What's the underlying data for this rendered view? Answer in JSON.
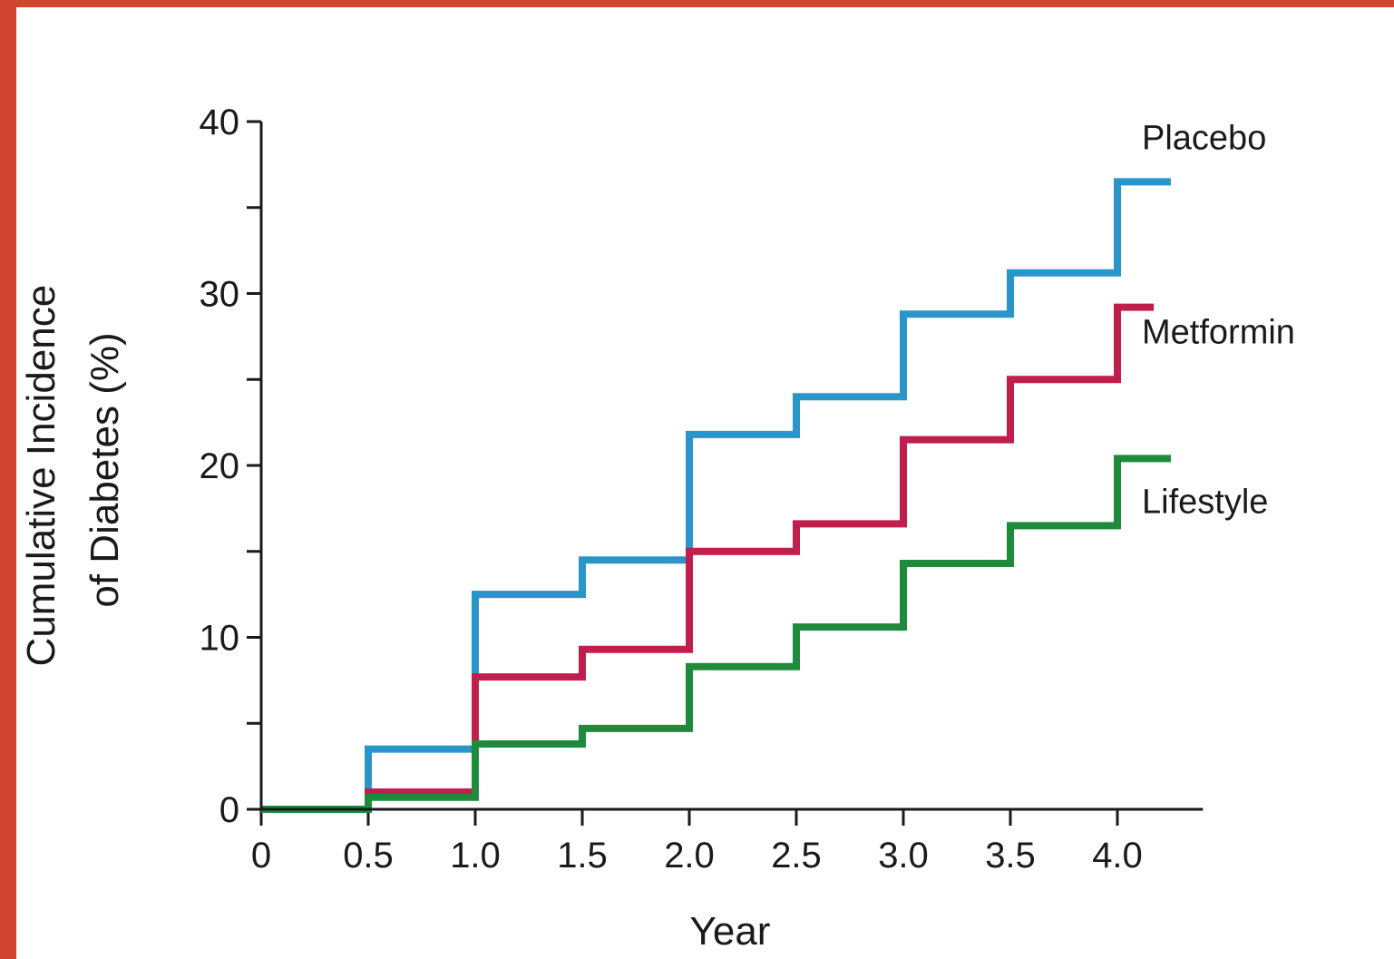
{
  "chart_data": {
    "type": "line",
    "step": true,
    "title": "",
    "xlabel": "Year",
    "ylabel_lines": [
      "Cumulative Incidence",
      "of Diabetes (%)"
    ],
    "xlim": [
      0,
      4.4
    ],
    "ylim": [
      0,
      40
    ],
    "xticks": [
      0,
      0.5,
      1.0,
      1.5,
      2.0,
      2.5,
      3.0,
      3.5,
      4.0
    ],
    "xtick_labels": [
      "0",
      "0.5",
      "1.0",
      "1.5",
      "2.0",
      "2.5",
      "3.0",
      "3.5",
      "4.0"
    ],
    "yticks": [
      0,
      10,
      20,
      30,
      40
    ],
    "ytick_labels": [
      "0",
      "10",
      "20",
      "30",
      "40"
    ],
    "y_minor_step": 5,
    "grid": false,
    "legend": "direct labels at right end of lines",
    "series": [
      {
        "name": "Placebo",
        "color": "#2a95c8",
        "x": [
          0,
          0.5,
          1.0,
          1.5,
          2.0,
          2.5,
          3.0,
          3.5,
          4.0,
          4.25
        ],
        "y": [
          0,
          3.5,
          12.5,
          14.5,
          21.8,
          24.0,
          28.8,
          31.2,
          36.5,
          36.5
        ]
      },
      {
        "name": "Metformin",
        "color": "#c01e4c",
        "x": [
          0,
          0.5,
          1.0,
          1.5,
          2.0,
          2.5,
          3.0,
          3.5,
          4.0,
          4.17
        ],
        "y": [
          0,
          1.0,
          7.7,
          9.3,
          15.0,
          16.6,
          21.5,
          25.0,
          29.2,
          29.2
        ]
      },
      {
        "name": "Lifestyle",
        "color": "#1f8a3c",
        "x": [
          0,
          0.5,
          1.0,
          1.5,
          2.0,
          2.5,
          3.0,
          3.5,
          4.0,
          4.25
        ],
        "y": [
          0,
          0.7,
          3.8,
          4.7,
          8.3,
          10.6,
          14.3,
          16.5,
          20.4,
          20.4
        ]
      }
    ]
  }
}
